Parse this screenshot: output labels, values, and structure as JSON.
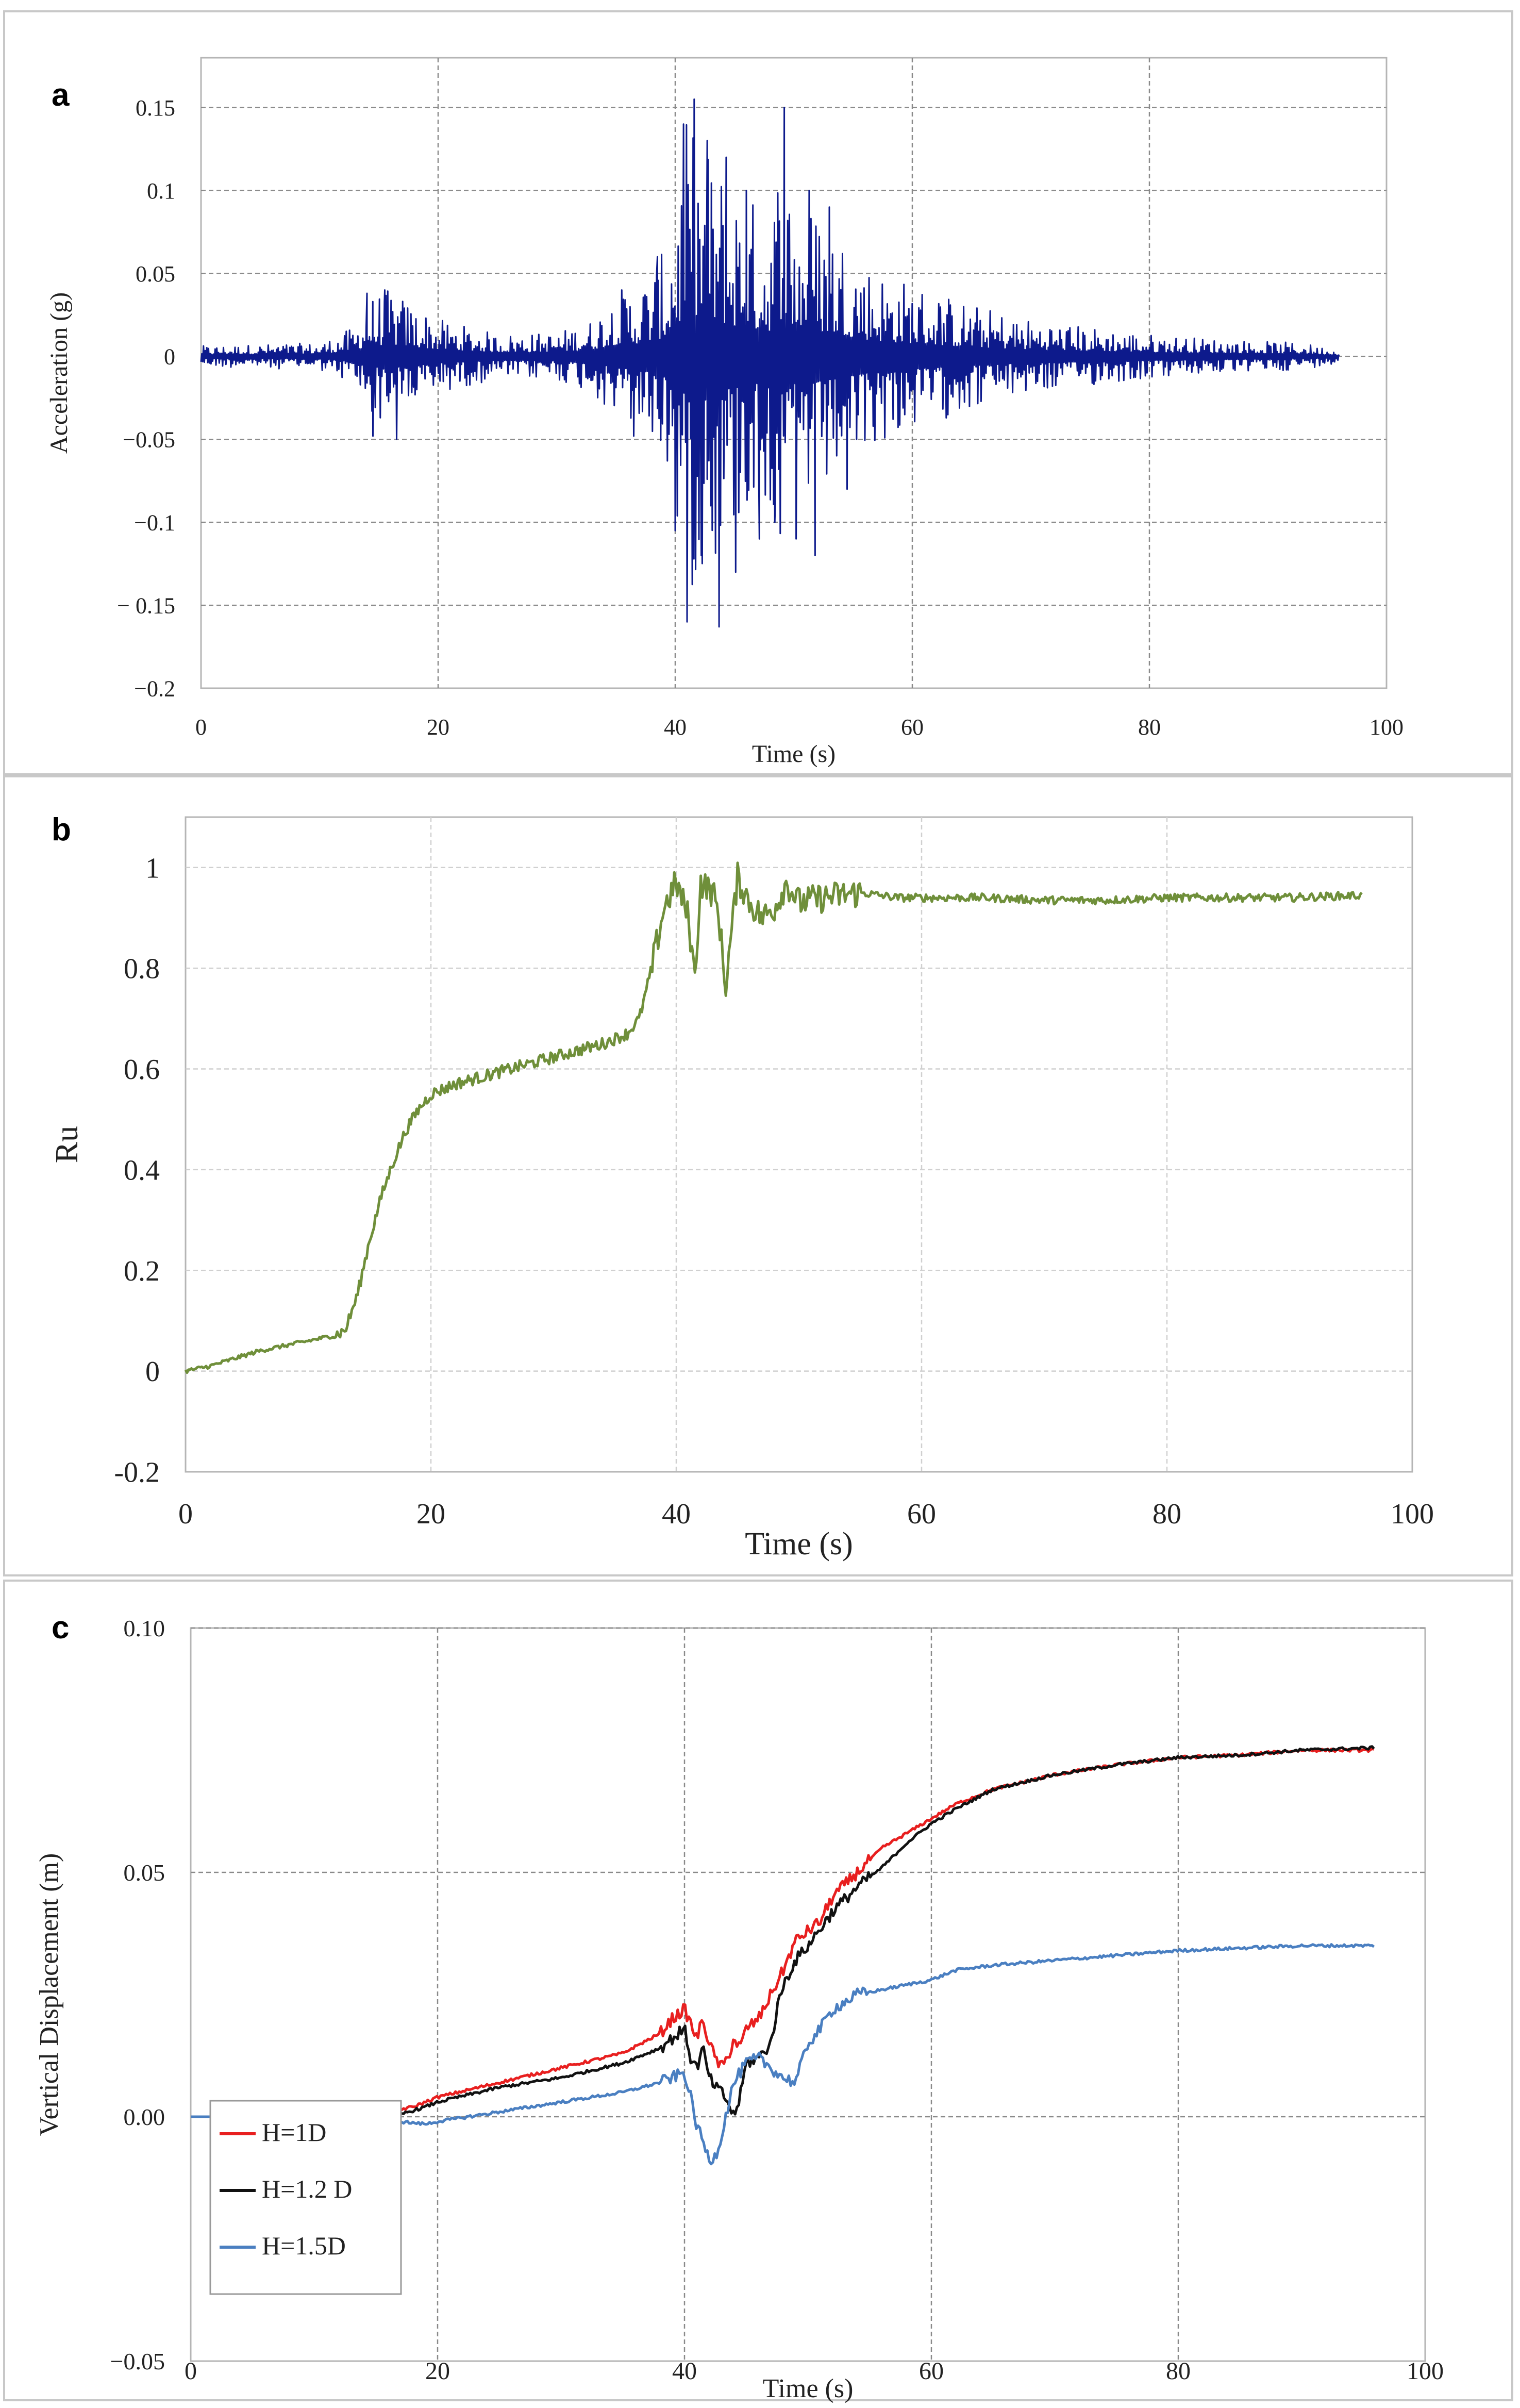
{
  "chart_data": [
    {
      "panel": "a",
      "type": "line",
      "title": "",
      "xlabel": "Time (s)",
      "ylabel": "Acceleration (g)",
      "xlim": [
        0,
        100
      ],
      "ylim": [
        -0.2,
        0.18
      ],
      "xticks": [
        0,
        20,
        40,
        60,
        80,
        100
      ],
      "xtick_labels": [
        "0",
        "20",
        "40",
        "60",
        "80",
        "100"
      ],
      "yticks": [
        0.15,
        0.1,
        0.05,
        0,
        -0.05,
        -0.1,
        -0.15,
        -0.2
      ],
      "ytick_labels": [
        "0.15",
        "0.1",
        "0.05",
        "0",
        "−0.05",
        "−0.1",
        "− 0.15",
        "−0.2"
      ],
      "grid": true,
      "series": [
        {
          "name": "Acceleration",
          "color": "#0d1a8c",
          "envelope": {
            "t": [
              0,
              10,
              13,
              14,
              16,
              18,
              20,
              25,
              30,
              33,
              35,
              37,
              39,
              40,
              41,
              42,
              43,
              44,
              46,
              48,
              49,
              50,
              52,
              54,
              56,
              58,
              60,
              65,
              70,
              75,
              80,
              85,
              90,
              93,
              96
            ],
            "amp": [
              0.007,
              0.009,
              0.02,
              0.04,
              0.045,
              0.035,
              0.025,
              0.015,
              0.016,
              0.025,
              0.045,
              0.05,
              0.07,
              0.11,
              0.16,
              0.15,
              0.14,
              0.13,
              0.11,
              0.1,
              0.15,
              0.11,
              0.1,
              0.085,
              0.065,
              0.055,
              0.05,
              0.035,
              0.025,
              0.02,
              0.015,
              0.012,
              0.01,
              0.009,
              0.004
            ]
          },
          "peaks": [
            {
              "t": 14.0,
              "v": 0.038
            },
            {
              "t": 14.5,
              "v": -0.048
            },
            {
              "t": 15.5,
              "v": 0.04
            },
            {
              "t": 16.5,
              "v": -0.05
            },
            {
              "t": 36.5,
              "v": -0.048
            },
            {
              "t": 38.5,
              "v": 0.06
            },
            {
              "t": 40.0,
              "v": -0.105
            },
            {
              "t": 40.7,
              "v": 0.14
            },
            {
              "t": 41.0,
              "v": -0.16
            },
            {
              "t": 41.6,
              "v": 0.155
            },
            {
              "t": 42.2,
              "v": -0.12
            },
            {
              "t": 42.7,
              "v": 0.13
            },
            {
              "t": 43.0,
              "v": -0.09
            },
            {
              "t": 43.7,
              "v": -0.163
            },
            {
              "t": 44.3,
              "v": 0.12
            },
            {
              "t": 45.1,
              "v": -0.13
            },
            {
              "t": 46.0,
              "v": 0.1
            },
            {
              "t": 47.1,
              "v": -0.11
            },
            {
              "t": 48.4,
              "v": -0.1
            },
            {
              "t": 49.2,
              "v": 0.15
            },
            {
              "t": 50.2,
              "v": -0.11
            },
            {
              "t": 51.3,
              "v": 0.1
            },
            {
              "t": 51.8,
              "v": -0.12
            },
            {
              "t": 53.0,
              "v": 0.09
            },
            {
              "t": 54.5,
              "v": -0.08
            }
          ]
        }
      ]
    },
    {
      "panel": "b",
      "type": "line",
      "title": "",
      "xlabel": "Time (s)",
      "ylabel": "Ru",
      "xlim": [
        0,
        100
      ],
      "ylim": [
        -0.2,
        1.1
      ],
      "xticks": [
        0,
        20,
        40,
        60,
        80,
        100
      ],
      "xtick_labels": [
        "0",
        "20",
        "40",
        "60",
        "80",
        "100"
      ],
      "yticks": [
        1,
        0.8,
        0.6,
        0.4,
        0.2,
        0,
        -0.2
      ],
      "ytick_labels": [
        "1",
        "0.8",
        "0.6",
        "0.4",
        "0.2",
        "0",
        "-0.2"
      ],
      "grid": true,
      "series": [
        {
          "name": "Ru",
          "color": "#6f8f3a",
          "x": [
            0,
            2,
            4,
            6,
            8,
            10,
            12,
            13,
            14,
            15,
            16,
            17,
            18,
            19,
            20,
            22,
            25,
            28,
            31,
            34,
            36,
            37,
            38,
            38.5,
            39,
            40,
            41,
            41.5,
            42,
            43,
            43.5,
            44,
            45,
            46,
            47,
            48,
            49,
            50,
            52,
            55,
            58,
            60,
            65,
            70,
            75,
            80,
            85,
            90,
            96
          ],
          "y": [
            0,
            0.01,
            0.025,
            0.04,
            0.05,
            0.06,
            0.07,
            0.08,
            0.15,
            0.26,
            0.35,
            0.42,
            0.48,
            0.52,
            0.55,
            0.57,
            0.59,
            0.61,
            0.63,
            0.65,
            0.67,
            0.7,
            0.8,
            0.86,
            0.92,
            0.97,
            0.9,
            0.78,
            0.97,
            0.95,
            0.9,
            0.76,
            0.98,
            0.93,
            0.9,
            0.92,
            0.97,
            0.93,
            0.94,
            0.95,
            0.94,
            0.94,
            0.94,
            0.935,
            0.935,
            0.94,
            0.94,
            0.94,
            0.945
          ],
          "noise": 0.018
        }
      ]
    },
    {
      "panel": "c",
      "type": "line",
      "title": "",
      "xlabel": "Time (s)",
      "ylabel": "Vertical Displacement (m)",
      "xlim": [
        0,
        100
      ],
      "ylim": [
        -0.05,
        0.1
      ],
      "xticks": [
        0,
        20,
        40,
        60,
        80,
        100
      ],
      "xtick_labels": [
        "0",
        "20",
        "40",
        "60",
        "80",
        "100"
      ],
      "yticks": [
        0.1,
        0.05,
        0,
        -0.05
      ],
      "ytick_labels": [
        "0.10",
        "0.05",
        "0.00",
        "−0.05"
      ],
      "grid": true,
      "legend": "bottom-left",
      "series": [
        {
          "name": "H=1D",
          "color": "#e81f1f",
          "x": [
            0,
            14,
            16,
            18,
            20,
            25,
            30,
            35,
            38,
            39,
            40,
            40.5,
            41,
            41.5,
            42,
            42.5,
            43,
            43.5,
            44,
            44.5,
            45,
            46,
            47,
            48,
            49,
            50,
            51,
            52,
            54,
            56,
            58,
            60,
            62,
            65,
            70,
            75,
            80,
            85,
            90,
            96
          ],
          "y": [
            0,
            0,
            0.001,
            0.002,
            0.004,
            0.007,
            0.01,
            0.013,
            0.017,
            0.02,
            0.022,
            0.019,
            0.016,
            0.02,
            0.015,
            0.012,
            0.01,
            0.012,
            0.016,
            0.014,
            0.018,
            0.02,
            0.025,
            0.03,
            0.036,
            0.038,
            0.04,
            0.045,
            0.05,
            0.055,
            0.058,
            0.061,
            0.064,
            0.067,
            0.07,
            0.072,
            0.0735,
            0.074,
            0.075,
            0.075
          ]
        },
        {
          "name": "H=1.2 D",
          "color": "#111111",
          "x": [
            0,
            15,
            17,
            19,
            20,
            25,
            30,
            35,
            38,
            39,
            40,
            40.5,
            41,
            41.5,
            42,
            42.5,
            43,
            43.5,
            44,
            44.5,
            45,
            46,
            47,
            47.5,
            48,
            49,
            50,
            52,
            54,
            56,
            58,
            60,
            62,
            65,
            70,
            75,
            80,
            85,
            90,
            96
          ],
          "y": [
            0,
            0,
            0.0005,
            0.002,
            0.003,
            0.006,
            0.008,
            0.011,
            0.014,
            0.016,
            0.018,
            0.012,
            0.01,
            0.014,
            0.008,
            0.006,
            0.005,
            0.003,
            0.0,
            0.004,
            0.011,
            0.012,
            0.015,
            0.022,
            0.027,
            0.032,
            0.035,
            0.042,
            0.047,
            0.051,
            0.056,
            0.06,
            0.063,
            0.067,
            0.07,
            0.072,
            0.0735,
            0.074,
            0.075,
            0.0755
          ]
        },
        {
          "name": "H=1.5D",
          "color": "#4a7fc1",
          "x": [
            0,
            15,
            17,
            19,
            20,
            25,
            30,
            35,
            38,
            39,
            40,
            40.5,
            41,
            41.5,
            42,
            42.5,
            43,
            43.5,
            44,
            45,
            46,
            47,
            48,
            49,
            50,
            51,
            52,
            54,
            56,
            58,
            60,
            62,
            65,
            70,
            75,
            80,
            85,
            90,
            96
          ],
          "y": [
            0,
            0,
            -0.001,
            -0.0015,
            -0.001,
            0.001,
            0.003,
            0.005,
            0.007,
            0.008,
            0.009,
            0.004,
            -0.002,
            -0.005,
            -0.009,
            -0.008,
            -0.004,
            0.002,
            0.007,
            0.011,
            0.012,
            0.01,
            0.008,
            0.007,
            0.015,
            0.018,
            0.022,
            0.025,
            0.026,
            0.027,
            0.028,
            0.03,
            0.031,
            0.032,
            0.033,
            0.034,
            0.0345,
            0.035,
            0.035
          ]
        }
      ]
    }
  ],
  "labels": {
    "panel_a": "a",
    "panel_b": "b",
    "panel_c": "c"
  },
  "colors": {
    "frame": "#c8c8c8",
    "grid_dark": "#8a8a8a",
    "grid_light": "#d5d5d5"
  }
}
